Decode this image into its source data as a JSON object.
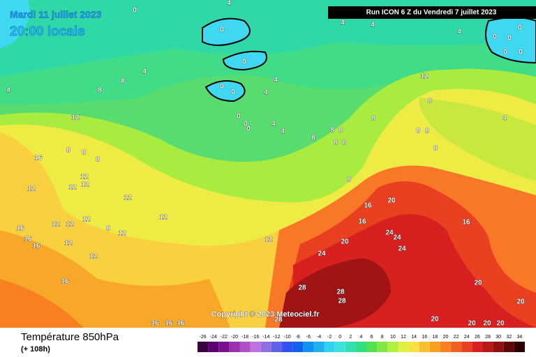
{
  "header": {
    "date": "Mardi 11 juillet 2023",
    "time": "20:00 locale",
    "run": "Run ICON 6 Z du Vendredi 7 juillet 2023"
  },
  "copyright": "Copyright © 2023 Meteociel.fr",
  "footer": {
    "title": "Température 850hPa",
    "lead": "(+ 108h)"
  },
  "legend": {
    "ticks": [
      -26,
      -24,
      -22,
      -20,
      -18,
      -16,
      -14,
      -12,
      -10,
      -8,
      -6,
      -4,
      -2,
      0,
      2,
      4,
      6,
      8,
      10,
      12,
      14,
      16,
      18,
      20,
      22,
      24,
      26,
      28,
      30,
      32,
      34
    ],
    "colors": [
      "#3a0040",
      "#5a0070",
      "#7a1090",
      "#9a30b0",
      "#b050c8",
      "#c070e0",
      "#9070e0",
      "#6060e8",
      "#3050f0",
      "#1060f0",
      "#1090f0",
      "#20b0f0",
      "#30d0f0",
      "#40e0e0",
      "#30e0b0",
      "#30e080",
      "#50e050",
      "#80e840",
      "#b0f040",
      "#e0f040",
      "#f8e040",
      "#f8c030",
      "#f8a020",
      "#f88020",
      "#f06020",
      "#e84020",
      "#d82020",
      "#b81818",
      "#901010",
      "#600808",
      "#300000"
    ]
  },
  "map_labels": [
    0,
    4,
    0,
    4,
    4,
    4,
    0,
    0,
    0,
    0,
    0,
    0,
    4,
    8,
    8,
    4,
    0,
    0,
    4,
    4,
    0,
    0,
    0,
    4,
    4,
    12,
    8,
    8,
    8,
    8,
    8,
    8,
    8,
    8,
    8,
    8,
    4,
    12,
    8,
    8,
    8,
    16,
    12,
    12,
    12,
    12,
    12,
    8,
    20,
    16,
    12,
    12,
    12,
    12,
    8,
    12,
    16,
    16,
    16,
    12,
    16,
    16,
    12,
    20,
    24,
    24,
    24,
    24,
    12,
    16,
    20,
    28,
    28,
    28,
    20,
    28,
    20,
    20,
    20,
    20,
    16,
    16,
    16
  ]
}
